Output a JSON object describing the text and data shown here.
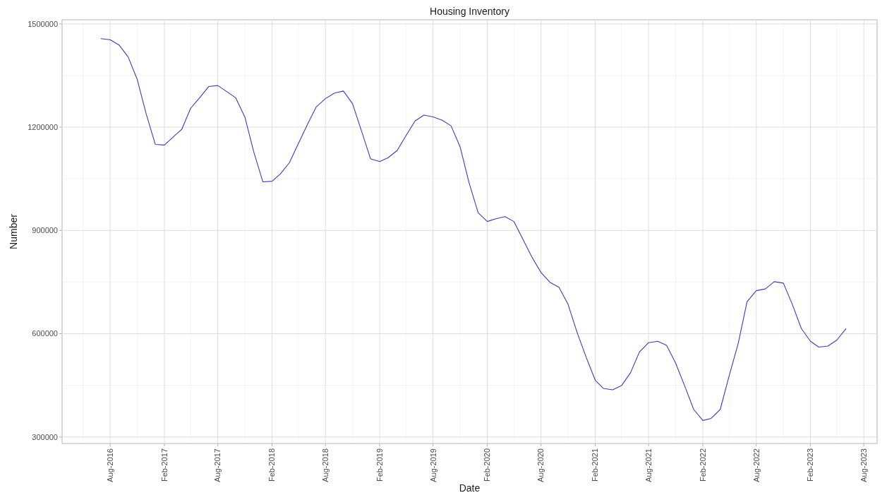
{
  "chart_data": {
    "type": "line",
    "title": "Housing Inventory",
    "xlabel": "Date",
    "ylabel": "Number",
    "x": [
      "2016-07",
      "2016-08",
      "2016-09",
      "2016-10",
      "2016-11",
      "2016-12",
      "2017-01",
      "2017-02",
      "2017-03",
      "2017-04",
      "2017-05",
      "2017-06",
      "2017-07",
      "2017-08",
      "2017-09",
      "2017-10",
      "2017-11",
      "2017-12",
      "2018-01",
      "2018-02",
      "2018-03",
      "2018-04",
      "2018-05",
      "2018-06",
      "2018-07",
      "2018-08",
      "2018-09",
      "2018-10",
      "2018-11",
      "2018-12",
      "2019-01",
      "2019-02",
      "2019-03",
      "2019-04",
      "2019-05",
      "2019-06",
      "2019-07",
      "2019-08",
      "2019-09",
      "2019-10",
      "2019-11",
      "2019-12",
      "2020-01",
      "2020-02",
      "2020-03",
      "2020-04",
      "2020-05",
      "2020-06",
      "2020-07",
      "2020-08",
      "2020-09",
      "2020-10",
      "2020-11",
      "2020-12",
      "2021-01",
      "2021-02",
      "2021-03",
      "2021-04",
      "2021-05",
      "2021-06",
      "2021-07",
      "2021-08",
      "2021-09",
      "2021-10",
      "2021-11",
      "2021-12",
      "2022-01",
      "2022-02",
      "2022-03",
      "2022-04",
      "2022-05",
      "2022-06",
      "2022-07",
      "2022-08",
      "2022-09",
      "2022-10",
      "2022-11",
      "2022-12",
      "2023-01",
      "2023-02",
      "2023-03",
      "2023-04",
      "2023-05",
      "2023-06"
    ],
    "series": [
      {
        "color": "#3a3acc",
        "values": [
          1457000,
          1454000,
          1438000,
          1404000,
          1338000,
          1239000,
          1150000,
          1148000,
          1170000,
          1194000,
          1255000,
          1286000,
          1318000,
          1321000,
          1303000,
          1285000,
          1229000,
          1128000,
          1041000,
          1043000,
          1064000,
          1097000,
          1152000,
          1208000,
          1259000,
          1283000,
          1299000,
          1305000,
          1268000,
          1190000,
          1108000,
          1100000,
          1111000,
          1132000,
          1175000,
          1218000,
          1235000,
          1230000,
          1220000,
          1204000,
          1142000,
          1039000,
          951000,
          926000,
          934000,
          940000,
          926000,
          874000,
          823000,
          778000,
          749000,
          735000,
          685000,
          605000,
          532000,
          465000,
          441000,
          437000,
          449000,
          487000,
          547000,
          574000,
          578000,
          566000,
          514000,
          449000,
          380000,
          348000,
          354000,
          380000,
          477000,
          572000,
          693000,
          725000,
          730000,
          751000,
          747000,
          686000,
          615000,
          578000,
          561000,
          564000,
          581000,
          614000
        ]
      }
    ],
    "xlim": [
      "2016-02-20",
      "2023-09-15"
    ],
    "xticks": [
      {
        "value": "2016-05",
        "label": null
      },
      {
        "value": "2016-08",
        "label": "Aug-2016"
      },
      {
        "value": "2016-11",
        "label": null
      },
      {
        "value": "2017-02",
        "label": "Feb-2017"
      },
      {
        "value": "2017-05",
        "label": null
      },
      {
        "value": "2017-08",
        "label": "Aug-2017"
      },
      {
        "value": "2017-11",
        "label": null
      },
      {
        "value": "2018-02",
        "label": "Feb-2018"
      },
      {
        "value": "2018-05",
        "label": null
      },
      {
        "value": "2018-08",
        "label": "Aug-2018"
      },
      {
        "value": "2018-11",
        "label": null
      },
      {
        "value": "2019-02",
        "label": "Feb-2019"
      },
      {
        "value": "2019-05",
        "label": null
      },
      {
        "value": "2019-08",
        "label": "Aug-2019"
      },
      {
        "value": "2019-11",
        "label": null
      },
      {
        "value": "2020-02",
        "label": "Feb-2020"
      },
      {
        "value": "2020-05",
        "label": null
      },
      {
        "value": "2020-08",
        "label": "Aug-2020"
      },
      {
        "value": "2020-11",
        "label": null
      },
      {
        "value": "2021-02",
        "label": "Feb-2021"
      },
      {
        "value": "2021-05",
        "label": null
      },
      {
        "value": "2021-08",
        "label": "Aug-2021"
      },
      {
        "value": "2021-11",
        "label": null
      },
      {
        "value": "2022-02",
        "label": "Feb-2022"
      },
      {
        "value": "2022-05",
        "label": null
      },
      {
        "value": "2022-08",
        "label": "Aug-2022"
      },
      {
        "value": "2022-11",
        "label": null
      },
      {
        "value": "2023-02",
        "label": "Feb-2023"
      },
      {
        "value": "2023-05",
        "label": null
      },
      {
        "value": "2023-08",
        "label": "Aug-2023"
      }
    ],
    "ylim": [
      281000,
      1512000
    ],
    "yticks": [
      300000,
      {
        "value": 450000,
        "label": null
      },
      600000,
      {
        "value": 750000,
        "label": null
      },
      900000,
      {
        "value": 1050000,
        "label": null
      },
      1200000,
      {
        "value": 1350000,
        "label": null
      },
      1500000
    ],
    "grid": true,
    "marker": "none",
    "line_style": "solid"
  }
}
